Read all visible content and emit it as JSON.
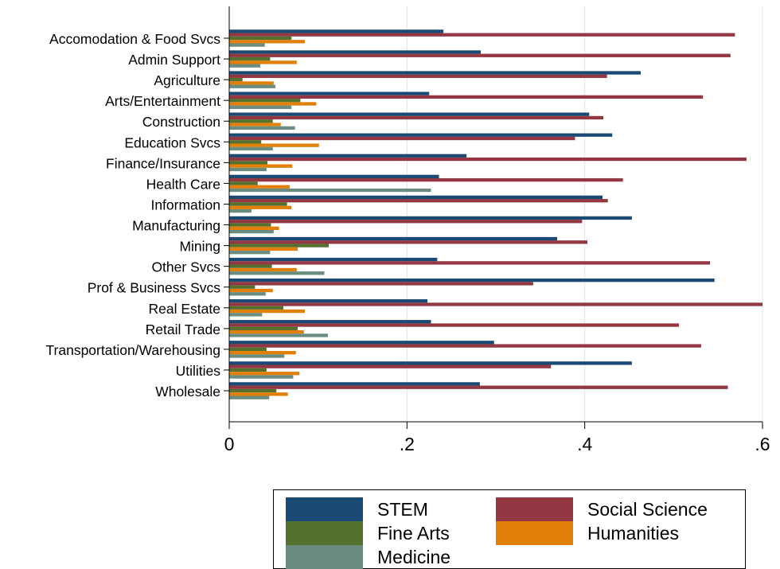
{
  "chart_data": {
    "type": "bar",
    "orientation": "horizontal",
    "title": "",
    "xlabel": "",
    "ylabel": "",
    "xlim": [
      0,
      0.6
    ],
    "x_ticks": [
      0,
      0.2,
      0.4,
      0.6
    ],
    "x_tick_labels": [
      "0",
      ".2",
      ".4",
      ".6"
    ],
    "grid": "vertical",
    "legend_position": "bottom-right",
    "categories": [
      "Accomodation & Food Svcs",
      "Admin Support",
      "Agriculture",
      "Arts/Entertainment",
      "Construction",
      "Education Svcs",
      "Finance/Insurance",
      "Health Care",
      "Information",
      "Manufacturing",
      "Mining",
      "Other Svcs",
      "Prof & Business Svcs",
      "Real Estate",
      "Retail Trade",
      "Transportation/Warehousing",
      "Utilities",
      "Wholesale"
    ],
    "series": [
      {
        "name": "STEM",
        "color": "#1a4a73",
        "values": [
          0.241,
          0.283,
          0.463,
          0.225,
          0.405,
          0.431,
          0.267,
          0.236,
          0.42,
          0.453,
          0.369,
          0.234,
          0.546,
          0.223,
          0.227,
          0.298,
          0.453,
          0.282
        ]
      },
      {
        "name": "Social Science",
        "color": "#933843",
        "values": [
          0.569,
          0.564,
          0.425,
          0.533,
          0.421,
          0.389,
          0.582,
          0.443,
          0.426,
          0.397,
          0.403,
          0.541,
          0.342,
          0.6,
          0.506,
          0.531,
          0.362,
          0.561
        ]
      },
      {
        "name": "Fine Arts",
        "color": "#55712e",
        "values": [
          0.07,
          0.046,
          0.015,
          0.08,
          0.049,
          0.036,
          0.043,
          0.032,
          0.065,
          0.047,
          0.112,
          0.048,
          0.029,
          0.061,
          0.077,
          0.042,
          0.042,
          0.053
        ]
      },
      {
        "name": "Humanities",
        "color": "#e17f07",
        "values": [
          0.085,
          0.076,
          0.05,
          0.098,
          0.058,
          0.101,
          0.071,
          0.068,
          0.07,
          0.056,
          0.077,
          0.076,
          0.049,
          0.085,
          0.084,
          0.075,
          0.079,
          0.066
        ]
      },
      {
        "name": "Medicine",
        "color": "#6b8d80",
        "values": [
          0.04,
          0.035,
          0.052,
          0.07,
          0.074,
          0.049,
          0.042,
          0.227,
          0.025,
          0.05,
          0.046,
          0.107,
          0.041,
          0.037,
          0.111,
          0.062,
          0.072,
          0.045
        ]
      }
    ]
  },
  "legend": {
    "items": [
      {
        "label": "STEM",
        "color": "#1a4a73"
      },
      {
        "label": "Social Science",
        "color": "#933843"
      },
      {
        "label": "Fine Arts",
        "color": "#55712e"
      },
      {
        "label": "Humanities",
        "color": "#e17f07"
      },
      {
        "label": "Medicine",
        "color": "#6b8d80"
      }
    ]
  }
}
